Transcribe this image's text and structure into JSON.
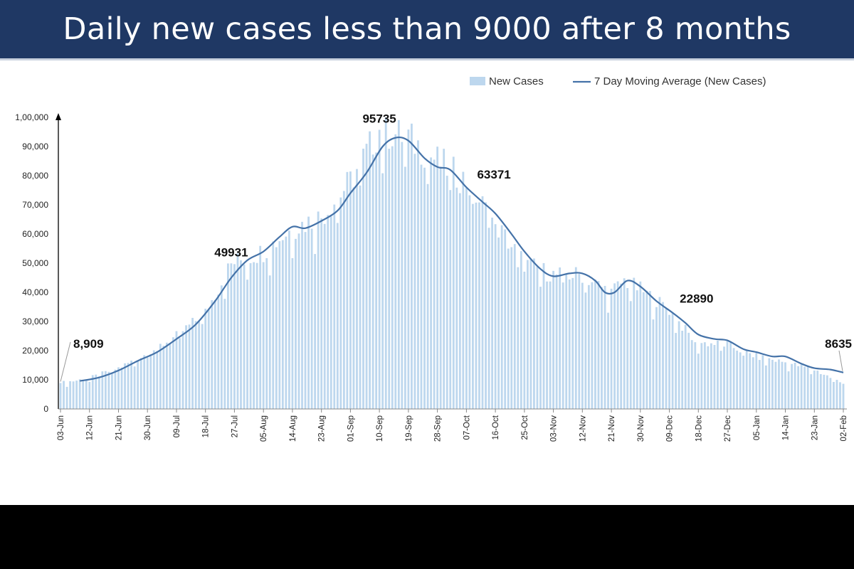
{
  "title": "Daily new cases less than 9000 after 8 months",
  "chart_data": {
    "type": "bar",
    "title": "Daily new cases less than 9000 after 8 months",
    "xlabel": "",
    "ylabel": "",
    "ylim": [
      0,
      100000
    ],
    "yticks": [
      {
        "value": 0,
        "label": "0"
      },
      {
        "value": 10000,
        "label": "10,000"
      },
      {
        "value": 20000,
        "label": "20,000"
      },
      {
        "value": 30000,
        "label": "30,000"
      },
      {
        "value": 40000,
        "label": "40,000"
      },
      {
        "value": 50000,
        "label": "50,000"
      },
      {
        "value": 60000,
        "label": "60,000"
      },
      {
        "value": 70000,
        "label": "70,000"
      },
      {
        "value": 80000,
        "label": "80,000"
      },
      {
        "value": 90000,
        "label": "90,000"
      },
      {
        "value": 100000,
        "label": "1,00,000"
      }
    ],
    "xticks": [
      "03-Jun",
      "12-Jun",
      "21-Jun",
      "30-Jun",
      "09-Jul",
      "18-Jul",
      "27-Jul",
      "05-Aug",
      "14-Aug",
      "23-Aug",
      "01-Sep",
      "10-Sep",
      "19-Sep",
      "28-Sep",
      "07-Oct",
      "16-Oct",
      "25-Oct",
      "03-Nov",
      "12-Nov",
      "21-Nov",
      "30-Nov",
      "09-Dec",
      "18-Dec",
      "27-Dec",
      "05-Jan",
      "14-Jan",
      "23-Jan",
      "02-Feb"
    ],
    "legend": {
      "position": "top-right",
      "bars_label": "New Cases",
      "line_label": "7 Day Moving Average (New Cases)"
    },
    "grid": false,
    "colors": {
      "bars": "#bdd7ee",
      "line": "#4472a8",
      "title_bg": "#1f3864"
    },
    "series": [
      {
        "name": "New Cases",
        "type": "bar",
        "anchors": [
          {
            "day": 0,
            "value": 8909
          },
          {
            "day": 9,
            "value": 10500
          },
          {
            "day": 18,
            "value": 14000
          },
          {
            "day": 27,
            "value": 19000
          },
          {
            "day": 36,
            "value": 25000
          },
          {
            "day": 45,
            "value": 33000
          },
          {
            "day": 53,
            "value": 49931
          },
          {
            "day": 63,
            "value": 54000
          },
          {
            "day": 72,
            "value": 62000
          },
          {
            "day": 81,
            "value": 66000
          },
          {
            "day": 90,
            "value": 78000
          },
          {
            "day": 99,
            "value": 95735
          },
          {
            "day": 108,
            "value": 93000
          },
          {
            "day": 117,
            "value": 85000
          },
          {
            "day": 126,
            "value": 78000
          },
          {
            "day": 135,
            "value": 63371
          },
          {
            "day": 144,
            "value": 50000
          },
          {
            "day": 153,
            "value": 46000
          },
          {
            "day": 162,
            "value": 46000
          },
          {
            "day": 166,
            "value": 43000
          },
          {
            "day": 171,
            "value": 40000
          },
          {
            "day": 175,
            "value": 44000
          },
          {
            "day": 180,
            "value": 41000
          },
          {
            "day": 189,
            "value": 34000
          },
          {
            "day": 197,
            "value": 22890
          },
          {
            "day": 207,
            "value": 22000
          },
          {
            "day": 216,
            "value": 18000
          },
          {
            "day": 225,
            "value": 16000
          },
          {
            "day": 234,
            "value": 13500
          },
          {
            "day": 243,
            "value": 8635
          }
        ]
      },
      {
        "name": "7 Day Moving Average (New Cases)",
        "type": "line",
        "points": [
          {
            "day": 6,
            "value": 9600
          },
          {
            "day": 12,
            "value": 10800
          },
          {
            "day": 18,
            "value": 13200
          },
          {
            "day": 24,
            "value": 16500
          },
          {
            "day": 30,
            "value": 19500
          },
          {
            "day": 36,
            "value": 24000
          },
          {
            "day": 42,
            "value": 29000
          },
          {
            "day": 48,
            "value": 37000
          },
          {
            "day": 53,
            "value": 45000
          },
          {
            "day": 58,
            "value": 51000
          },
          {
            "day": 63,
            "value": 54000
          },
          {
            "day": 68,
            "value": 59000
          },
          {
            "day": 72,
            "value": 62500
          },
          {
            "day": 76,
            "value": 62000
          },
          {
            "day": 81,
            "value": 64500
          },
          {
            "day": 86,
            "value": 68000
          },
          {
            "day": 90,
            "value": 74000
          },
          {
            "day": 95,
            "value": 81000
          },
          {
            "day": 100,
            "value": 90000
          },
          {
            "day": 104,
            "value": 93000
          },
          {
            "day": 108,
            "value": 92000
          },
          {
            "day": 113,
            "value": 86000
          },
          {
            "day": 117,
            "value": 83000
          },
          {
            "day": 121,
            "value": 82000
          },
          {
            "day": 126,
            "value": 76000
          },
          {
            "day": 131,
            "value": 71000
          },
          {
            "day": 135,
            "value": 67000
          },
          {
            "day": 140,
            "value": 60000
          },
          {
            "day": 144,
            "value": 54000
          },
          {
            "day": 149,
            "value": 48000
          },
          {
            "day": 153,
            "value": 45500
          },
          {
            "day": 158,
            "value": 46500
          },
          {
            "day": 162,
            "value": 46500
          },
          {
            "day": 166,
            "value": 44000
          },
          {
            "day": 169,
            "value": 40000
          },
          {
            "day": 172,
            "value": 40000
          },
          {
            "day": 176,
            "value": 44000
          },
          {
            "day": 180,
            "value": 42000
          },
          {
            "day": 185,
            "value": 37000
          },
          {
            "day": 190,
            "value": 33000
          },
          {
            "day": 194,
            "value": 29500
          },
          {
            "day": 198,
            "value": 25500
          },
          {
            "day": 203,
            "value": 24000
          },
          {
            "day": 207,
            "value": 23500
          },
          {
            "day": 212,
            "value": 20500
          },
          {
            "day": 216,
            "value": 19500
          },
          {
            "day": 221,
            "value": 18000
          },
          {
            "day": 225,
            "value": 18000
          },
          {
            "day": 230,
            "value": 15500
          },
          {
            "day": 234,
            "value": 14000
          },
          {
            "day": 239,
            "value": 13500
          },
          {
            "day": 243,
            "value": 12500
          }
        ]
      }
    ],
    "annotations": [
      {
        "text": "8,909",
        "day": 0,
        "value": 8909
      },
      {
        "text": "49931",
        "day": 53,
        "value": 49931
      },
      {
        "text": "95735",
        "day": 99,
        "value": 95735
      },
      {
        "text": "63371",
        "day": 135,
        "value": 63371
      },
      {
        "text": "22890",
        "day": 197,
        "value": 22890
      },
      {
        "text": "8635",
        "day": 243,
        "value": 8635
      }
    ]
  }
}
